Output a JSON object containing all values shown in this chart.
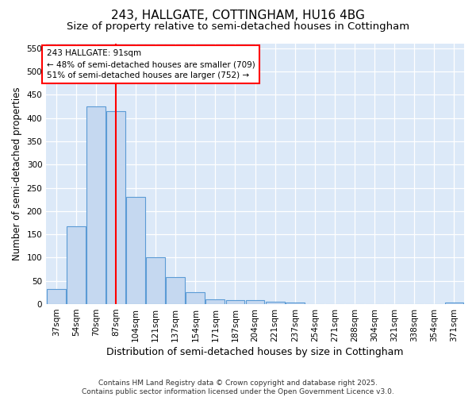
{
  "title": "243, HALLGATE, COTTINGHAM, HU16 4BG",
  "subtitle": "Size of property relative to semi-detached houses in Cottingham",
  "xlabel": "Distribution of semi-detached houses by size in Cottingham",
  "ylabel": "Number of semi-detached properties",
  "categories": [
    "37sqm",
    "54sqm",
    "70sqm",
    "87sqm",
    "104sqm",
    "121sqm",
    "137sqm",
    "154sqm",
    "171sqm",
    "187sqm",
    "204sqm",
    "221sqm",
    "237sqm",
    "254sqm",
    "271sqm",
    "288sqm",
    "304sqm",
    "321sqm",
    "338sqm",
    "354sqm",
    "371sqm"
  ],
  "values": [
    33,
    168,
    425,
    415,
    230,
    101,
    58,
    25,
    10,
    8,
    8,
    5,
    3,
    0,
    0,
    0,
    0,
    0,
    0,
    0,
    4
  ],
  "bar_color": "#c5d8f0",
  "bar_edge_color": "#5b9bd5",
  "vline_x": 3,
  "vline_color": "red",
  "annotation_text": "243 HALLGATE: 91sqm\n← 48% of semi-detached houses are smaller (709)\n51% of semi-detached houses are larger (752) →",
  "annotation_box_color": "white",
  "annotation_box_edge_color": "red",
  "ylim": [
    0,
    560
  ],
  "yticks": [
    0,
    50,
    100,
    150,
    200,
    250,
    300,
    350,
    400,
    450,
    500,
    550
  ],
  "axes_bg_color": "#dce9f8",
  "fig_bg_color": "#ffffff",
  "footer": "Contains HM Land Registry data © Crown copyright and database right 2025.\nContains public sector information licensed under the Open Government Licence v3.0.",
  "title_fontsize": 11,
  "subtitle_fontsize": 9.5,
  "xlabel_fontsize": 9,
  "ylabel_fontsize": 8.5,
  "tick_fontsize": 7.5,
  "footer_fontsize": 6.5,
  "ann_fontsize": 7.5
}
